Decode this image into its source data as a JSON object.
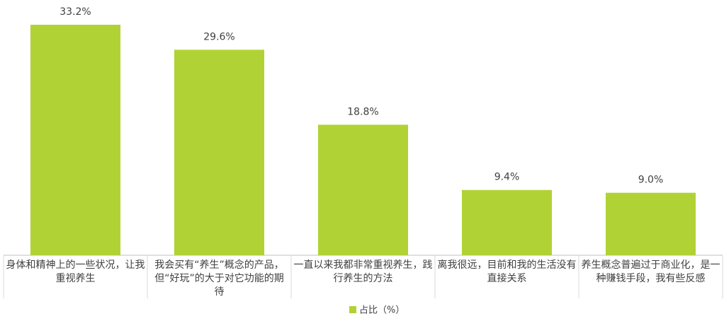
{
  "chart_data": {
    "type": "bar",
    "categories": [
      "身体和精神上的一些状况，让我重视养生",
      "我会买有“养生”概念的产品，但“好玩”的大于对它功能的期待",
      "一直以来我都非常重视养生，践行养生的方法",
      "离我很远，目前和我的生活没有直接关系",
      "养生概念普遍过于商业化，是一种赚钱手段，我有些反感"
    ],
    "series": [
      {
        "name": "占比（%）",
        "color": "#b1d235",
        "values": [
          33.2,
          29.6,
          18.8,
          9.4,
          9.0
        ],
        "value_labels": [
          "33.2%",
          "29.6%",
          "18.8%",
          "9.4%",
          "9.0%"
        ]
      }
    ],
    "legend": "bottom"
  }
}
